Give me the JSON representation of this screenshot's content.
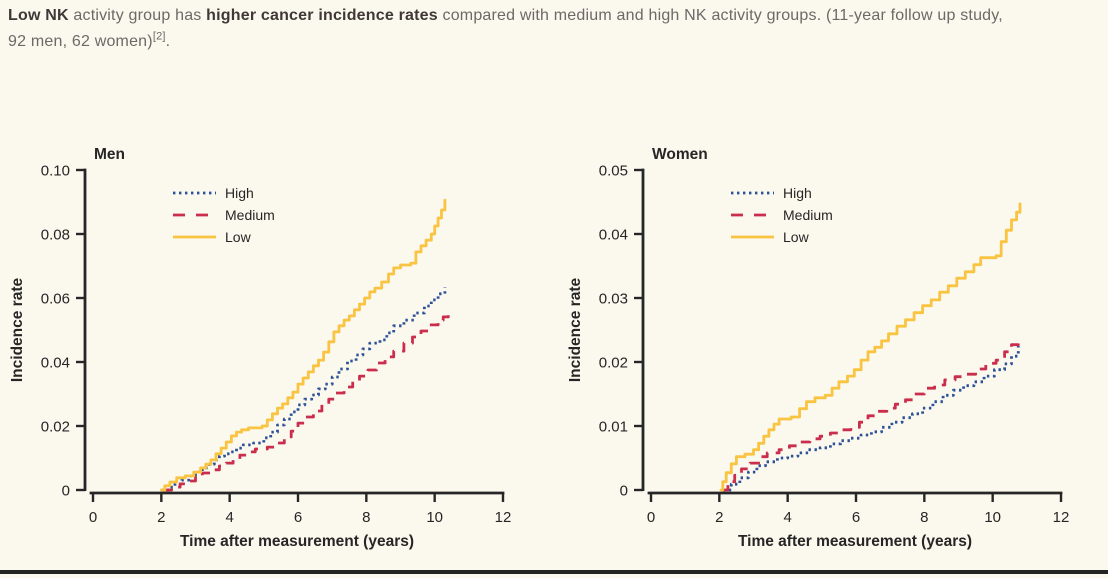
{
  "page": {
    "background_color": "#fbf8ee",
    "bottom_rule_color": "#242424"
  },
  "caption": {
    "lines": [
      {
        "segments": [
          {
            "text": "Low NK",
            "bold": true
          },
          {
            "text": " activity group has ",
            "bold": false
          },
          {
            "text": "higher cancer incidence rates",
            "bold": true
          },
          {
            "text": " compared with medium and high NK activity groups. (11-year follow up study,",
            "bold": false
          }
        ]
      },
      {
        "segments": [
          {
            "text": "92 men, 62 women)",
            "bold": false
          },
          {
            "text": "[2]",
            "bold": false,
            "sup": true
          },
          {
            "text": ".",
            "bold": false
          }
        ]
      }
    ]
  },
  "chart_theme": {
    "axis_color": "#262626",
    "text_color": "#262626",
    "background": "#fbf8ee"
  },
  "chart_data": [
    {
      "type": "line",
      "subtype": "step",
      "title": "Men",
      "xlabel": "Time after measurement (years)",
      "ylabel": "Incidence rate",
      "xlim": [
        0,
        12
      ],
      "ylim": [
        0,
        0.1
      ],
      "xticks": [
        0,
        2,
        4,
        6,
        8,
        10,
        12
      ],
      "yticks": [
        0,
        0.02,
        0.04,
        0.06,
        0.08,
        0.1
      ],
      "grid": false,
      "legend_position": "upper-left-inside",
      "series": [
        {
          "name": "High",
          "color": "#2d5198",
          "style": "dotted",
          "points": [
            [
              2.0,
              0
            ],
            [
              2.2,
              0.0009
            ],
            [
              2.4,
              0.0019
            ],
            [
              2.6,
              0.0031
            ],
            [
              2.8,
              0.0044
            ],
            [
              3.0,
              0.0056
            ],
            [
              3.2,
              0.0069
            ],
            [
              3.4,
              0.0081
            ],
            [
              3.55,
              0.0094
            ],
            [
              3.7,
              0.0106
            ],
            [
              3.85,
              0.0113
            ],
            [
              4.0,
              0.0119
            ],
            [
              4.2,
              0.0131
            ],
            [
              4.4,
              0.0141
            ],
            [
              4.7,
              0.0147
            ],
            [
              5.0,
              0.0163
            ],
            [
              5.2,
              0.0181
            ],
            [
              5.4,
              0.0203
            ],
            [
              5.6,
              0.0222
            ],
            [
              5.8,
              0.0244
            ],
            [
              6.0,
              0.0266
            ],
            [
              6.2,
              0.0284
            ],
            [
              6.4,
              0.0297
            ],
            [
              6.6,
              0.0316
            ],
            [
              6.8,
              0.0331
            ],
            [
              7.0,
              0.0353
            ],
            [
              7.2,
              0.0378
            ],
            [
              7.45,
              0.0403
            ],
            [
              7.7,
              0.0422
            ],
            [
              7.9,
              0.0441
            ],
            [
              8.1,
              0.0459
            ],
            [
              8.4,
              0.0469
            ],
            [
              8.6,
              0.0491
            ],
            [
              8.8,
              0.0513
            ],
            [
              9.1,
              0.0531
            ],
            [
              9.4,
              0.0553
            ],
            [
              9.7,
              0.0575
            ],
            [
              9.9,
              0.0594
            ],
            [
              10.1,
              0.0613
            ],
            [
              10.3,
              0.0634
            ]
          ]
        },
        {
          "name": "Medium",
          "color": "#cb2e4d",
          "style": "dashed",
          "points": [
            [
              2.05,
              0
            ],
            [
              2.3,
              0.0009
            ],
            [
              2.55,
              0.0019
            ],
            [
              2.8,
              0.0028
            ],
            [
              3.0,
              0.0041
            ],
            [
              3.2,
              0.0053
            ],
            [
              3.45,
              0.0063
            ],
            [
              3.7,
              0.0075
            ],
            [
              3.9,
              0.0084
            ],
            [
              4.1,
              0.0097
            ],
            [
              4.3,
              0.0109
            ],
            [
              4.5,
              0.0119
            ],
            [
              4.75,
              0.0128
            ],
            [
              5.1,
              0.0134
            ],
            [
              5.35,
              0.0147
            ],
            [
              5.6,
              0.0166
            ],
            [
              5.8,
              0.0184
            ],
            [
              6.0,
              0.0209
            ],
            [
              6.2,
              0.0228
            ],
            [
              6.45,
              0.0247
            ],
            [
              6.7,
              0.0266
            ],
            [
              6.9,
              0.0284
            ],
            [
              7.1,
              0.0303
            ],
            [
              7.35,
              0.0322
            ],
            [
              7.6,
              0.0341
            ],
            [
              7.8,
              0.0356
            ],
            [
              8.05,
              0.0375
            ],
            [
              8.3,
              0.0397
            ],
            [
              8.55,
              0.0416
            ],
            [
              8.8,
              0.0434
            ],
            [
              9.1,
              0.0459
            ],
            [
              9.35,
              0.0478
            ],
            [
              9.6,
              0.0497
            ],
            [
              9.85,
              0.0516
            ],
            [
              10.1,
              0.0531
            ],
            [
              10.25,
              0.0541
            ],
            [
              10.4,
              0.0556
            ]
          ]
        },
        {
          "name": "Low",
          "color": "#f9c441",
          "style": "solid",
          "points": [
            [
              2.0,
              0
            ],
            [
              2.1,
              0.0013
            ],
            [
              2.25,
              0.0025
            ],
            [
              2.45,
              0.0038
            ],
            [
              2.7,
              0.0044
            ],
            [
              2.95,
              0.0056
            ],
            [
              3.15,
              0.0069
            ],
            [
              3.3,
              0.0081
            ],
            [
              3.45,
              0.0094
            ],
            [
              3.6,
              0.0113
            ],
            [
              3.75,
              0.0131
            ],
            [
              3.9,
              0.015
            ],
            [
              4.05,
              0.0169
            ],
            [
              4.2,
              0.0181
            ],
            [
              4.35,
              0.0188
            ],
            [
              4.55,
              0.0194
            ],
            [
              4.95,
              0.02
            ],
            [
              5.1,
              0.0219
            ],
            [
              5.25,
              0.0238
            ],
            [
              5.4,
              0.0256
            ],
            [
              5.55,
              0.0269
            ],
            [
              5.7,
              0.0288
            ],
            [
              5.85,
              0.0306
            ],
            [
              6.0,
              0.0331
            ],
            [
              6.15,
              0.035
            ],
            [
              6.3,
              0.0369
            ],
            [
              6.45,
              0.0388
            ],
            [
              6.6,
              0.0406
            ],
            [
              6.75,
              0.0431
            ],
            [
              6.9,
              0.0463
            ],
            [
              7.05,
              0.0494
            ],
            [
              7.2,
              0.0513
            ],
            [
              7.35,
              0.0531
            ],
            [
              7.5,
              0.0544
            ],
            [
              7.65,
              0.0563
            ],
            [
              7.8,
              0.0581
            ],
            [
              7.95,
              0.06
            ],
            [
              8.1,
              0.0619
            ],
            [
              8.25,
              0.0631
            ],
            [
              8.45,
              0.065
            ],
            [
              8.65,
              0.0675
            ],
            [
              8.8,
              0.0694
            ],
            [
              9.0,
              0.0703
            ],
            [
              9.3,
              0.0709
            ],
            [
              9.45,
              0.0744
            ],
            [
              9.6,
              0.0763
            ],
            [
              9.75,
              0.0781
            ],
            [
              9.9,
              0.08
            ],
            [
              10.0,
              0.0825
            ],
            [
              10.1,
              0.085
            ],
            [
              10.2,
              0.0875
            ],
            [
              10.3,
              0.0906
            ]
          ]
        }
      ]
    },
    {
      "type": "line",
      "subtype": "step",
      "title": "Women",
      "xlabel": "Time after measurement (years)",
      "ylabel": "Incidence rate",
      "xlim": [
        0,
        12
      ],
      "ylim": [
        0,
        0.05
      ],
      "xticks": [
        0,
        2,
        4,
        6,
        8,
        10,
        12
      ],
      "yticks": [
        0,
        0.01,
        0.02,
        0.03,
        0.04,
        0.05
      ],
      "grid": false,
      "legend_position": "upper-left-inside",
      "series": [
        {
          "name": "High",
          "color": "#2d5198",
          "style": "dotted",
          "points": [
            [
              2.1,
              0
            ],
            [
              2.35,
              0.0009
            ],
            [
              2.6,
              0.0019
            ],
            [
              2.85,
              0.0028
            ],
            [
              3.1,
              0.0038
            ],
            [
              3.35,
              0.0044
            ],
            [
              3.7,
              0.005
            ],
            [
              4.0,
              0.0053
            ],
            [
              4.3,
              0.0058
            ],
            [
              4.6,
              0.0063
            ],
            [
              4.95,
              0.0066
            ],
            [
              5.25,
              0.0072
            ],
            [
              5.55,
              0.0077
            ],
            [
              5.85,
              0.0081
            ],
            [
              6.15,
              0.0086
            ],
            [
              6.45,
              0.0091
            ],
            [
              6.75,
              0.0098
            ],
            [
              7.05,
              0.0106
            ],
            [
              7.35,
              0.0113
            ],
            [
              7.65,
              0.0119
            ],
            [
              7.95,
              0.0128
            ],
            [
              8.25,
              0.0138
            ],
            [
              8.55,
              0.0148
            ],
            [
              8.85,
              0.0156
            ],
            [
              9.15,
              0.0163
            ],
            [
              9.45,
              0.0169
            ],
            [
              9.75,
              0.0178
            ],
            [
              10.05,
              0.0188
            ],
            [
              10.35,
              0.0197
            ],
            [
              10.55,
              0.0209
            ],
            [
              10.75,
              0.0225
            ]
          ]
        },
        {
          "name": "Medium",
          "color": "#cb2e4d",
          "style": "dashed",
          "points": [
            [
              2.1,
              0
            ],
            [
              2.25,
              0.0013
            ],
            [
              2.45,
              0.0023
            ],
            [
              2.65,
              0.0033
            ],
            [
              2.9,
              0.0042
            ],
            [
              3.15,
              0.0052
            ],
            [
              3.4,
              0.0058
            ],
            [
              3.75,
              0.0063
            ],
            [
              4.05,
              0.0069
            ],
            [
              4.35,
              0.0075
            ],
            [
              4.65,
              0.008
            ],
            [
              4.95,
              0.0084
            ],
            [
              5.25,
              0.0089
            ],
            [
              5.55,
              0.0094
            ],
            [
              5.85,
              0.0098
            ],
            [
              6.1,
              0.0106
            ],
            [
              6.35,
              0.0116
            ],
            [
              6.6,
              0.0123
            ],
            [
              6.9,
              0.0128
            ],
            [
              7.15,
              0.0134
            ],
            [
              7.45,
              0.0141
            ],
            [
              7.7,
              0.015
            ],
            [
              8.0,
              0.0159
            ],
            [
              8.3,
              0.0164
            ],
            [
              8.6,
              0.0172
            ],
            [
              8.9,
              0.0177
            ],
            [
              9.2,
              0.0181
            ],
            [
              9.5,
              0.0189
            ],
            [
              9.8,
              0.0198
            ],
            [
              10.1,
              0.0203
            ],
            [
              10.35,
              0.0216
            ],
            [
              10.55,
              0.0227
            ],
            [
              10.75,
              0.0241
            ]
          ]
        },
        {
          "name": "Low",
          "color": "#f9c441",
          "style": "solid",
          "points": [
            [
              2.05,
              0
            ],
            [
              2.1,
              0.0013
            ],
            [
              2.2,
              0.0027
            ],
            [
              2.35,
              0.0041
            ],
            [
              2.5,
              0.0052
            ],
            [
              2.75,
              0.0056
            ],
            [
              3.0,
              0.0063
            ],
            [
              3.15,
              0.0073
            ],
            [
              3.3,
              0.0084
            ],
            [
              3.45,
              0.0094
            ],
            [
              3.6,
              0.0103
            ],
            [
              3.75,
              0.0111
            ],
            [
              4.1,
              0.0114
            ],
            [
              4.35,
              0.0127
            ],
            [
              4.55,
              0.0138
            ],
            [
              4.8,
              0.0144
            ],
            [
              5.1,
              0.0148
            ],
            [
              5.3,
              0.0159
            ],
            [
              5.5,
              0.0169
            ],
            [
              5.75,
              0.0178
            ],
            [
              5.95,
              0.0188
            ],
            [
              6.15,
              0.0203
            ],
            [
              6.35,
              0.0216
            ],
            [
              6.55,
              0.0223
            ],
            [
              6.75,
              0.0233
            ],
            [
              6.95,
              0.0244
            ],
            [
              7.2,
              0.0256
            ],
            [
              7.45,
              0.0266
            ],
            [
              7.7,
              0.0277
            ],
            [
              7.95,
              0.0288
            ],
            [
              8.2,
              0.0297
            ],
            [
              8.45,
              0.0309
            ],
            [
              8.7,
              0.0319
            ],
            [
              8.95,
              0.0331
            ],
            [
              9.2,
              0.0341
            ],
            [
              9.45,
              0.0352
            ],
            [
              9.65,
              0.0363
            ],
            [
              10.1,
              0.0366
            ],
            [
              10.25,
              0.0388
            ],
            [
              10.4,
              0.0406
            ],
            [
              10.55,
              0.0422
            ],
            [
              10.7,
              0.0434
            ],
            [
              10.8,
              0.0447
            ]
          ]
        }
      ]
    }
  ]
}
